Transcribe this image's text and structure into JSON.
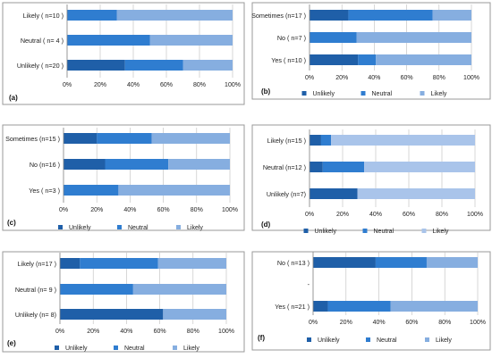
{
  "colors": {
    "unlikely": "#1f5fa8",
    "neutral": "#2f7dd0",
    "likely": "#86aee0",
    "likely_light": "#a9c4ea",
    "frame": "#9a9a9a",
    "tick": "#bdbdbd"
  },
  "chart_data": [
    {
      "type": "bar",
      "orientation": "horizontal",
      "stacked": true,
      "panel_label": "(a)",
      "categories": [
        "Likely ( n=10 )",
        "Neutral ( n= 4 )",
        "Unlikely ( n=20 )"
      ],
      "series": [
        {
          "name": "Unlikely",
          "values": [
            0,
            0,
            35
          ]
        },
        {
          "name": "Neutral",
          "values": [
            30,
            50,
            35
          ]
        },
        {
          "name": "Likely",
          "values": [
            70,
            50,
            30
          ]
        }
      ],
      "xticks": [
        "0%",
        "20%",
        "40%",
        "60%",
        "80%",
        "100%"
      ],
      "xlim": [
        0,
        100
      ],
      "legend": null
    },
    {
      "type": "bar",
      "orientation": "horizontal",
      "stacked": true,
      "panel_label": "(b)",
      "categories": [
        "Sometimes (n=17 )",
        "No ( n=7 )",
        "Yes ( n=10 )"
      ],
      "series": [
        {
          "name": "Unlikely",
          "values": [
            24,
            0,
            30
          ]
        },
        {
          "name": "Neutral",
          "values": [
            52,
            29,
            11
          ]
        },
        {
          "name": "Likely",
          "values": [
            24,
            71,
            59
          ]
        }
      ],
      "xticks": [
        "0%",
        "20%",
        "40%",
        "60%",
        "80%",
        "100%"
      ],
      "xlim": [
        0,
        100
      ],
      "legend": [
        "Unlikely",
        "Neutral",
        "Likely"
      ]
    },
    {
      "type": "bar",
      "orientation": "horizontal",
      "stacked": true,
      "panel_label": "(c)",
      "categories": [
        "Sometimes (n=15 )",
        "No (n=16 )",
        "Yes ( n=3 )"
      ],
      "series": [
        {
          "name": "Unlikely",
          "values": [
            20,
            25,
            0
          ]
        },
        {
          "name": "Neutral",
          "values": [
            33,
            38,
            33
          ]
        },
        {
          "name": "Likely",
          "values": [
            47,
            37,
            67
          ]
        }
      ],
      "xticks": [
        "0%",
        "20%",
        "40%",
        "60%",
        "80%",
        "100%"
      ],
      "xlim": [
        0,
        100
      ],
      "legend": [
        "Unlikely",
        "Neutral",
        "Likely"
      ]
    },
    {
      "type": "bar",
      "orientation": "horizontal",
      "stacked": true,
      "panel_label": "(d)",
      "categories": [
        "Likely (n=15 )",
        "Neutral (n=12 )",
        "Unlikely (n=7)"
      ],
      "series": [
        {
          "name": "Unlikely",
          "values": [
            7,
            8,
            29
          ]
        },
        {
          "name": "Neutral",
          "values": [
            6,
            25,
            0
          ]
        },
        {
          "name": "Likely",
          "values": [
            87,
            67,
            71
          ]
        }
      ],
      "xticks": [
        "0%",
        "20%",
        "40%",
        "60%",
        "80%",
        "100%"
      ],
      "xlim": [
        0,
        100
      ],
      "legend": [
        "Unlikely",
        "Neutral",
        "Likely"
      ]
    },
    {
      "type": "bar",
      "orientation": "horizontal",
      "stacked": true,
      "panel_label": "(e)",
      "categories": [
        "Likely (n=17 )",
        "Neutral (n= 9 )",
        "Unlikely (n= 8)"
      ],
      "series": [
        {
          "name": "Unlikely",
          "values": [
            12,
            0,
            62
          ]
        },
        {
          "name": "Neutral",
          "values": [
            47,
            44,
            0
          ]
        },
        {
          "name": "Likely",
          "values": [
            41,
            56,
            38
          ]
        }
      ],
      "xticks": [
        "0%",
        "20%",
        "40%",
        "60%",
        "80%",
        "100%"
      ],
      "xlim": [
        0,
        100
      ],
      "legend": [
        "Unlikely",
        "Neutral",
        "Likely"
      ]
    },
    {
      "type": "bar",
      "orientation": "horizontal",
      "stacked": true,
      "panel_label": "(f)",
      "categories": [
        "No ( n=13 )",
        "-",
        "Yes ( n=21 )"
      ],
      "series": [
        {
          "name": "Unlikely",
          "values": [
            38,
            0,
            9
          ]
        },
        {
          "name": "Neutral",
          "values": [
            31,
            0,
            38
          ]
        },
        {
          "name": "Likely",
          "values": [
            31,
            0,
            53
          ]
        }
      ],
      "xticks": [
        "0%",
        "20%",
        "40%",
        "60%",
        "80%",
        "100%"
      ],
      "xlim": [
        0,
        100
      ],
      "legend": [
        "Unlikely",
        "Neutral",
        "Likely"
      ]
    }
  ]
}
